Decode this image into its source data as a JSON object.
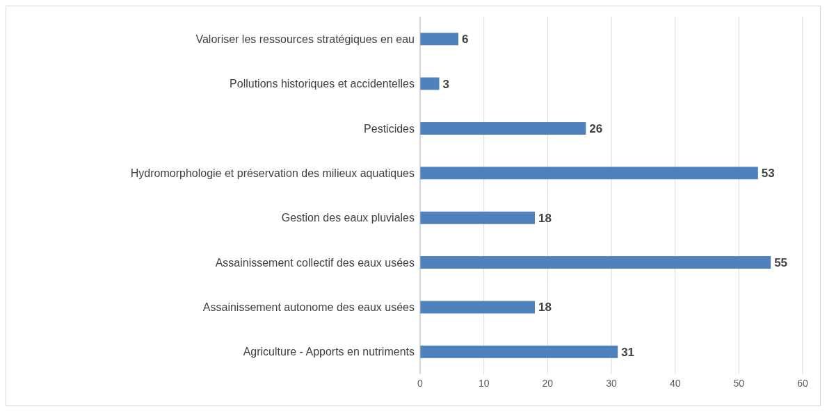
{
  "chart_data": {
    "type": "bar",
    "orientation": "horizontal",
    "categories": [
      "Valoriser les ressources stratégiques en eau",
      "Pollutions historiques et accidentelles",
      "Pesticides",
      "Hydromorphologie et préservation des milieux aquatiques",
      "Gestion des eaux pluviales",
      "Assainissement collectif des eaux usées",
      "Assainissement autonome des eaux usées",
      "Agriculture - Apports en nutriments"
    ],
    "values": [
      6,
      3,
      26,
      53,
      18,
      55,
      18,
      31
    ],
    "color": "#4f81bd",
    "xlim": [
      0,
      60
    ],
    "xticks": [
      0,
      10,
      20,
      30,
      40,
      50,
      60
    ],
    "grid": "x",
    "data_labels": true
  }
}
